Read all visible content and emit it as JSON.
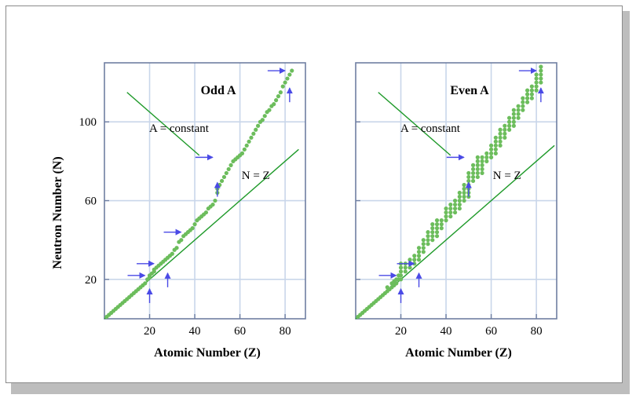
{
  "y_axis_label": "Neutron Number (N)",
  "colors": {
    "grid": "#c9d6ea",
    "axes": "#6f7fa2",
    "points": "#6cbd5c",
    "line": "#1f9a2a",
    "arrows": "#4a4ae6"
  },
  "chart_data": [
    {
      "type": "scatter",
      "title": "Odd A",
      "xlabel": "Atomic Number (Z)",
      "ylabel": "Neutron Number (N)",
      "xlim": [
        0,
        89
      ],
      "ylim": [
        0,
        130
      ],
      "xticks": [
        "20",
        "40",
        "60",
        "80"
      ],
      "yticks": [
        "20",
        "60",
        "100"
      ],
      "grid": true,
      "annotations": {
        "a_constant": "A = constant",
        "n_eq_z": "N = Z"
      },
      "n_eq_z_line": {
        "x": [
          0,
          86
        ],
        "y": [
          0,
          86
        ]
      },
      "a_constant_line": {
        "x": [
          10,
          42
        ],
        "y": [
          115,
          83
        ]
      },
      "points": [
        [
          1,
          1
        ],
        [
          2,
          2
        ],
        [
          3,
          3
        ],
        [
          4,
          4
        ],
        [
          5,
          5
        ],
        [
          6,
          6
        ],
        [
          7,
          7
        ],
        [
          8,
          8
        ],
        [
          9,
          9
        ],
        [
          10,
          10
        ],
        [
          11,
          11
        ],
        [
          12,
          12
        ],
        [
          13,
          13
        ],
        [
          14,
          14
        ],
        [
          15,
          15
        ],
        [
          16,
          16
        ],
        [
          17,
          17
        ],
        [
          18,
          18
        ],
        [
          19,
          20
        ],
        [
          20,
          21
        ],
        [
          20,
          22
        ],
        [
          21,
          23
        ],
        [
          22,
          24
        ],
        [
          22,
          25
        ],
        [
          23,
          26
        ],
        [
          24,
          27
        ],
        [
          25,
          28
        ],
        [
          26,
          29
        ],
        [
          27,
          30
        ],
        [
          28,
          31
        ],
        [
          29,
          32
        ],
        [
          30,
          33
        ],
        [
          31,
          35
        ],
        [
          32,
          36
        ],
        [
          33,
          39
        ],
        [
          34,
          40
        ],
        [
          35,
          42
        ],
        [
          36,
          43
        ],
        [
          37,
          44
        ],
        [
          38,
          45
        ],
        [
          39,
          46
        ],
        [
          40,
          48
        ],
        [
          41,
          50
        ],
        [
          42,
          51
        ],
        [
          43,
          52
        ],
        [
          44,
          53
        ],
        [
          45,
          54
        ],
        [
          46,
          56
        ],
        [
          47,
          57
        ],
        [
          48,
          58
        ],
        [
          49,
          60
        ],
        [
          50,
          64
        ],
        [
          50,
          66
        ],
        [
          51,
          68
        ],
        [
          52,
          70
        ],
        [
          53,
          72
        ],
        [
          54,
          74
        ],
        [
          55,
          76
        ],
        [
          56,
          78
        ],
        [
          57,
          80
        ],
        [
          58,
          81
        ],
        [
          59,
          82
        ],
        [
          60,
          83
        ],
        [
          61,
          84
        ],
        [
          62,
          86
        ],
        [
          63,
          88
        ],
        [
          64,
          90
        ],
        [
          65,
          92
        ],
        [
          66,
          94
        ],
        [
          67,
          96
        ],
        [
          68,
          98
        ],
        [
          69,
          100
        ],
        [
          70,
          101
        ],
        [
          71,
          103
        ],
        [
          72,
          105
        ],
        [
          73,
          106
        ],
        [
          74,
          108
        ],
        [
          75,
          109
        ],
        [
          76,
          111
        ],
        [
          77,
          113
        ],
        [
          78,
          115
        ],
        [
          79,
          118
        ],
        [
          80,
          120
        ],
        [
          81,
          122
        ],
        [
          82,
          124
        ],
        [
          83,
          126
        ]
      ],
      "magic_arrows_horizontal": [
        [
          20,
          22
        ],
        [
          24,
          28
        ],
        [
          36,
          44
        ],
        [
          50,
          82
        ],
        [
          82,
          126
        ]
      ],
      "magic_arrows_vertical": [
        [
          20,
          8
        ],
        [
          28,
          16
        ],
        [
          50,
          62
        ],
        [
          82,
          110
        ]
      ]
    },
    {
      "type": "scatter",
      "title": "Even A",
      "xlabel": "Atomic Number (Z)",
      "ylabel": "",
      "xlim": [
        0,
        89
      ],
      "ylim": [
        0,
        130
      ],
      "xticks": [
        "20",
        "40",
        "60",
        "80"
      ],
      "yticks": [],
      "grid": true,
      "annotations": {
        "a_constant": "A = constant",
        "n_eq_z": "N = Z"
      },
      "n_eq_z_line": {
        "x": [
          0,
          88
        ],
        "y": [
          0,
          88
        ]
      },
      "a_constant_line": {
        "x": [
          10,
          42
        ],
        "y": [
          115,
          83
        ]
      },
      "points": [
        [
          1,
          1
        ],
        [
          2,
          2
        ],
        [
          3,
          3
        ],
        [
          4,
          4
        ],
        [
          5,
          5
        ],
        [
          6,
          6
        ],
        [
          7,
          7
        ],
        [
          8,
          8
        ],
        [
          9,
          9
        ],
        [
          10,
          10
        ],
        [
          11,
          11
        ],
        [
          12,
          12
        ],
        [
          13,
          13
        ],
        [
          14,
          14
        ],
        [
          14,
          16
        ],
        [
          15,
          15
        ],
        [
          16,
          16
        ],
        [
          16,
          18
        ],
        [
          17,
          17
        ],
        [
          17,
          19
        ],
        [
          18,
          18
        ],
        [
          18,
          20
        ],
        [
          19,
          20
        ],
        [
          19,
          22
        ],
        [
          20,
          20
        ],
        [
          20,
          22
        ],
        [
          20,
          24
        ],
        [
          20,
          26
        ],
        [
          20,
          28
        ],
        [
          22,
          24
        ],
        [
          22,
          26
        ],
        [
          22,
          28
        ],
        [
          24,
          26
        ],
        [
          24,
          28
        ],
        [
          24,
          30
        ],
        [
          26,
          28
        ],
        [
          26,
          30
        ],
        [
          26,
          32
        ],
        [
          28,
          30
        ],
        [
          28,
          32
        ],
        [
          28,
          34
        ],
        [
          28,
          36
        ],
        [
          30,
          34
        ],
        [
          30,
          36
        ],
        [
          30,
          38
        ],
        [
          30,
          40
        ],
        [
          32,
          38
        ],
        [
          32,
          40
        ],
        [
          32,
          42
        ],
        [
          32,
          44
        ],
        [
          34,
          40
        ],
        [
          34,
          42
        ],
        [
          34,
          44
        ],
        [
          34,
          46
        ],
        [
          34,
          48
        ],
        [
          36,
          42
        ],
        [
          36,
          44
        ],
        [
          36,
          46
        ],
        [
          36,
          48
        ],
        [
          36,
          50
        ],
        [
          38,
          46
        ],
        [
          38,
          48
        ],
        [
          38,
          50
        ],
        [
          40,
          50
        ],
        [
          40,
          52
        ],
        [
          40,
          54
        ],
        [
          40,
          56
        ],
        [
          42,
          52
        ],
        [
          42,
          54
        ],
        [
          42,
          56
        ],
        [
          42,
          58
        ],
        [
          44,
          54
        ],
        [
          44,
          56
        ],
        [
          44,
          58
        ],
        [
          44,
          60
        ],
        [
          46,
          56
        ],
        [
          46,
          58
        ],
        [
          46,
          60
        ],
        [
          46,
          62
        ],
        [
          46,
          64
        ],
        [
          48,
          60
        ],
        [
          48,
          62
        ],
        [
          48,
          64
        ],
        [
          48,
          66
        ],
        [
          48,
          68
        ],
        [
          50,
          62
        ],
        [
          50,
          64
        ],
        [
          50,
          66
        ],
        [
          50,
          68
        ],
        [
          50,
          70
        ],
        [
          50,
          72
        ],
        [
          50,
          74
        ],
        [
          52,
          70
        ],
        [
          52,
          72
        ],
        [
          52,
          74
        ],
        [
          52,
          76
        ],
        [
          52,
          78
        ],
        [
          54,
          72
        ],
        [
          54,
          74
        ],
        [
          54,
          76
        ],
        [
          54,
          78
        ],
        [
          54,
          80
        ],
        [
          54,
          82
        ],
        [
          56,
          74
        ],
        [
          56,
          76
        ],
        [
          56,
          78
        ],
        [
          56,
          80
        ],
        [
          56,
          82
        ],
        [
          58,
          80
        ],
        [
          58,
          82
        ],
        [
          58,
          84
        ],
        [
          60,
          82
        ],
        [
          60,
          84
        ],
        [
          60,
          86
        ],
        [
          60,
          88
        ],
        [
          62,
          84
        ],
        [
          62,
          86
        ],
        [
          62,
          88
        ],
        [
          62,
          90
        ],
        [
          62,
          92
        ],
        [
          64,
          88
        ],
        [
          64,
          90
        ],
        [
          64,
          92
        ],
        [
          64,
          94
        ],
        [
          64,
          96
        ],
        [
          66,
          92
        ],
        [
          66,
          94
        ],
        [
          66,
          96
        ],
        [
          66,
          98
        ],
        [
          68,
          96
        ],
        [
          68,
          98
        ],
        [
          68,
          100
        ],
        [
          68,
          102
        ],
        [
          70,
          98
        ],
        [
          70,
          100
        ],
        [
          70,
          102
        ],
        [
          70,
          104
        ],
        [
          70,
          106
        ],
        [
          72,
          102
        ],
        [
          72,
          104
        ],
        [
          72,
          106
        ],
        [
          72,
          108
        ],
        [
          74,
          106
        ],
        [
          74,
          108
        ],
        [
          74,
          110
        ],
        [
          74,
          112
        ],
        [
          76,
          110
        ],
        [
          76,
          112
        ],
        [
          76,
          114
        ],
        [
          76,
          116
        ],
        [
          78,
          112
        ],
        [
          78,
          114
        ],
        [
          78,
          116
        ],
        [
          78,
          118
        ],
        [
          80,
          116
        ],
        [
          80,
          118
        ],
        [
          80,
          120
        ],
        [
          80,
          122
        ],
        [
          80,
          124
        ],
        [
          82,
          120
        ],
        [
          82,
          122
        ],
        [
          82,
          124
        ],
        [
          82,
          126
        ],
        [
          82,
          128
        ]
      ],
      "magic_arrows_horizontal": [
        [
          20,
          22
        ],
        [
          28,
          28
        ],
        [
          50,
          82
        ],
        [
          82,
          126
        ]
      ],
      "magic_arrows_vertical": [
        [
          20,
          8
        ],
        [
          28,
          16
        ],
        [
          50,
          62
        ],
        [
          82,
          110
        ]
      ]
    }
  ]
}
